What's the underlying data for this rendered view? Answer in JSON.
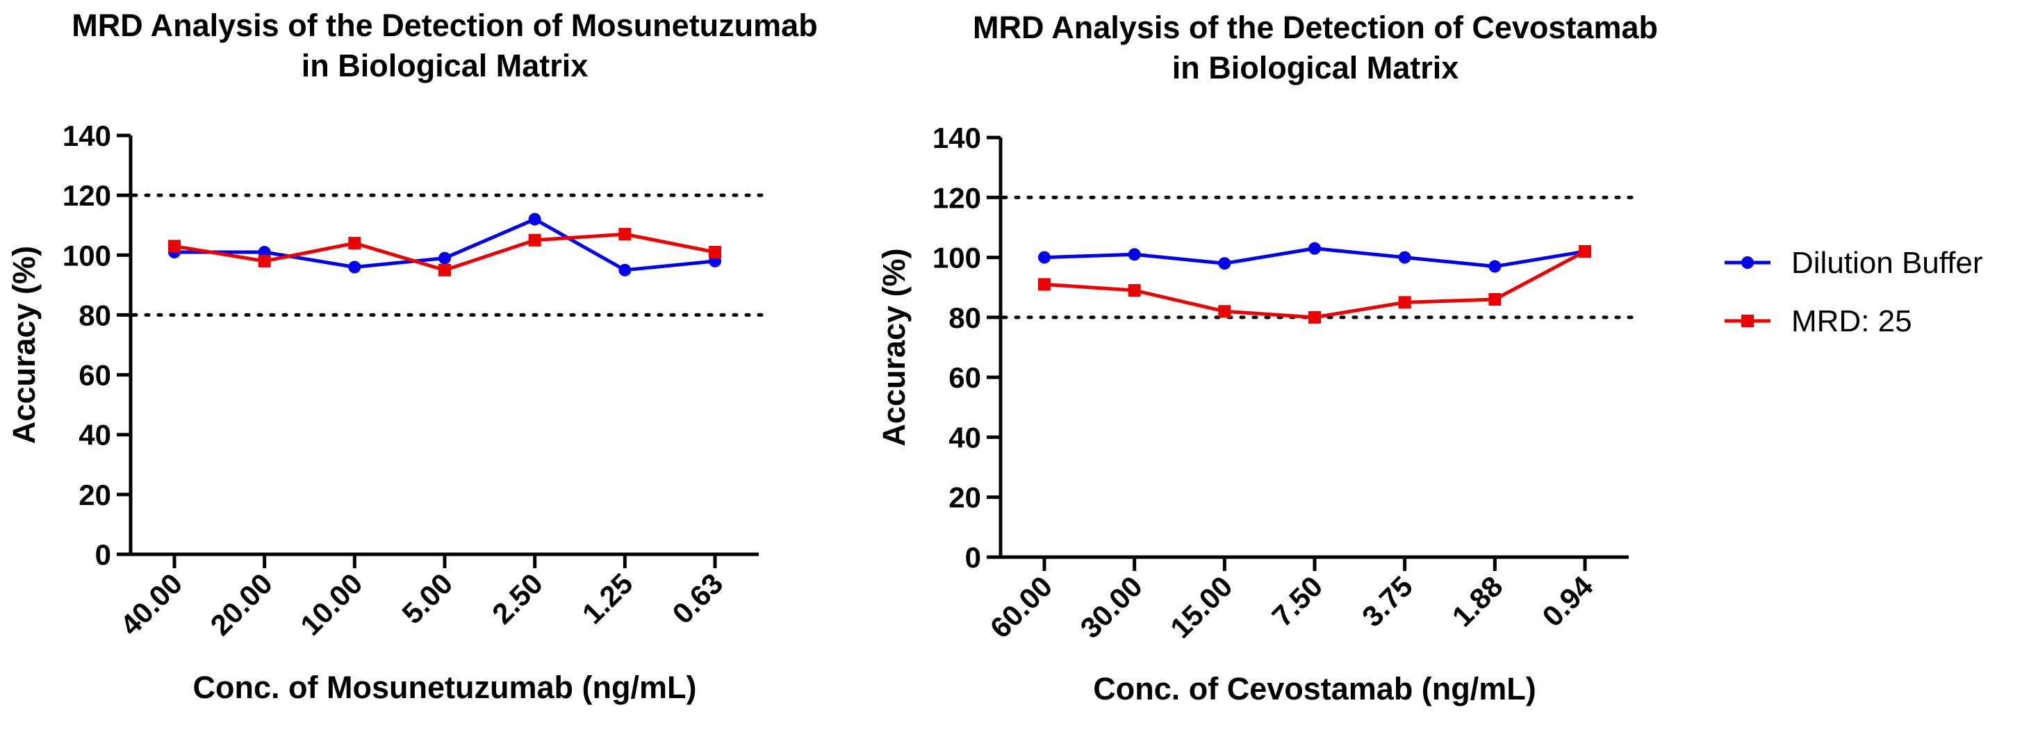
{
  "chart_data": [
    {
      "type": "line",
      "title_lines": [
        "MRD Analysis of the Detection of Mosunetuzumab",
        "in Biological Matrix"
      ],
      "xlabel": "Conc. of Mosunetuzumab (ng/mL)",
      "ylabel": "Accuracy (%)",
      "categories": [
        "40.00",
        "20.00",
        "10.00",
        "5.00",
        "2.50",
        "1.25",
        "0.63"
      ],
      "ylim": [
        0,
        140
      ],
      "yticks": [
        0,
        20,
        40,
        60,
        80,
        100,
        120,
        140
      ],
      "reference_lines": [
        80,
        120
      ],
      "grid": false,
      "series": [
        {
          "name": "Dilution Buffer",
          "color": "#0000ee",
          "marker": "circle",
          "values": [
            101,
            101,
            96,
            99,
            112,
            95,
            98
          ]
        },
        {
          "name": "MRD: 25",
          "color": "#ee0000",
          "marker": "square",
          "values": [
            103,
            98,
            104,
            95,
            105,
            107,
            101
          ]
        }
      ]
    },
    {
      "type": "line",
      "title_lines": [
        "MRD Analysis of the Detection of Cevostamab",
        "in Biological Matrix"
      ],
      "xlabel": "Conc. of Cevostamab (ng/mL)",
      "ylabel": "Accuracy (%)",
      "categories": [
        "60.00",
        "30.00",
        "15.00",
        "7.50",
        "3.75",
        "1.88",
        "0.94"
      ],
      "ylim": [
        0,
        140
      ],
      "yticks": [
        0,
        20,
        40,
        60,
        80,
        100,
        120,
        140
      ],
      "reference_lines": [
        80,
        120
      ],
      "grid": false,
      "series": [
        {
          "name": "Dilution Buffer",
          "color": "#0000ee",
          "marker": "circle",
          "values": [
            100,
            101,
            98,
            103,
            100,
            97,
            102
          ]
        },
        {
          "name": "MRD: 25",
          "color": "#ee0000",
          "marker": "square",
          "values": [
            91,
            89,
            82,
            80,
            85,
            86,
            102
          ]
        }
      ]
    }
  ],
  "legend": {
    "placement": "right",
    "entries": [
      {
        "label": "Dilution Buffer",
        "color": "#0000ee",
        "marker": "circle"
      },
      {
        "label": "MRD: 25",
        "color": "#ee0000",
        "marker": "square"
      }
    ]
  }
}
